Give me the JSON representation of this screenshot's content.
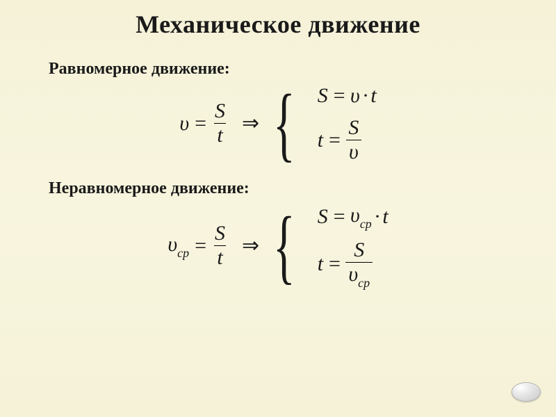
{
  "title": "Механическое движение",
  "section1": {
    "heading": "Равномерное движение:",
    "main": {
      "lhs_var": "υ",
      "rhs_num": "S",
      "rhs_den": "t"
    },
    "cases": [
      {
        "lhs": "S",
        "rhs_a": "υ",
        "op": "·",
        "rhs_b": "t",
        "type": "product"
      },
      {
        "lhs": "t",
        "num": "S",
        "den": "υ",
        "type": "fraction"
      }
    ]
  },
  "section2": {
    "heading": "Неравномерное движение:",
    "main": {
      "lhs_var": "υ",
      "lhs_sub": "ср",
      "rhs_num": "S",
      "rhs_den": "t"
    },
    "cases": [
      {
        "lhs": "S",
        "rhs_a": "υ",
        "rhs_a_sub": "ср",
        "op": "·",
        "rhs_b": "t",
        "type": "product"
      },
      {
        "lhs": "t",
        "num": "S",
        "den": "υ",
        "den_sub": "ср",
        "type": "fraction"
      }
    ]
  },
  "symbols": {
    "implies": "⇒",
    "eq": "=",
    "dot": "·"
  },
  "style": {
    "title_fontsize": 36,
    "subtitle_fontsize": 24,
    "formula_fontsize": 30,
    "text_color": "#1a1a1a",
    "bg_gradient_top": "#f5f2d8",
    "bg_gradient_mid": "#f8f5df"
  }
}
